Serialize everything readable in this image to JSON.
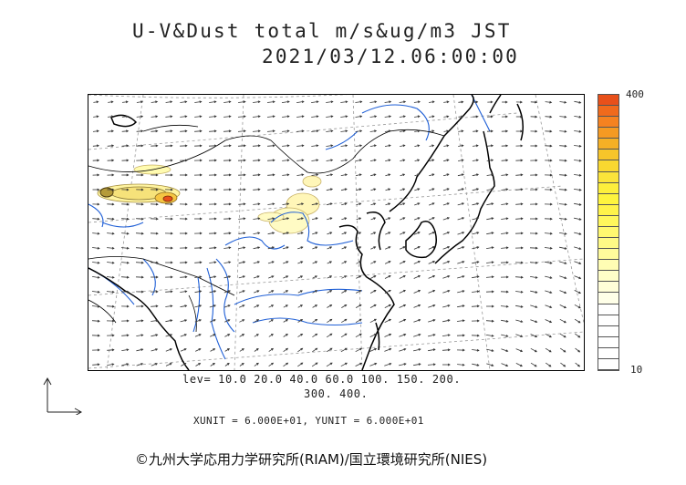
{
  "title": {
    "line1": "U-V&Dust total m/s&ug/m3 JST",
    "line2": "2021/03/12.06:00:00"
  },
  "colorbar": {
    "max_label": "400",
    "min_label": "10",
    "colors": [
      "#e8501a",
      "#f06a1c",
      "#f58220",
      "#f59a22",
      "#f5b025",
      "#f7c52a",
      "#f9d830",
      "#fbe43a",
      "#fdef3c",
      "#fef43e",
      "#fff34a",
      "#fff75c",
      "#fff870",
      "#fffa86",
      "#fffb9c",
      "#fffdb4",
      "#fffec8",
      "#fffed8",
      "#ffffe8",
      "#ffffff",
      "#ffffff",
      "#ffffff",
      "#ffffff",
      "#ffffff",
      "#ffffff"
    ]
  },
  "levels": {
    "line1": "lev= 10.0 20.0 40.0 60.0 100. 150. 200.",
    "line2": "300. 400."
  },
  "units": {
    "text": "XUNIT = 6.000E+01, YUNIT = 6.000E+01"
  },
  "reference_vector": {
    "icon": "reference-vector-icon"
  },
  "copyright": "©九州大学応用力学研究所(RIAM)/国立環境研究所(NIES)"
}
